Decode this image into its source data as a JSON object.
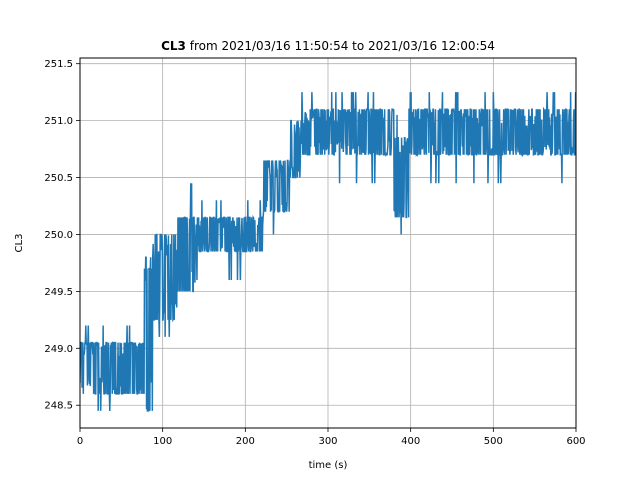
{
  "chart_data": {
    "type": "line",
    "title_bold": "CL3",
    "title_rest": " from 2021/03/16 11:50:54 to 2021/03/16 12:00:54",
    "xlabel": "time (s)",
    "ylabel": "CL3",
    "xlim": [
      0,
      600
    ],
    "ylim": [
      248.3,
      251.55
    ],
    "xticks": [
      0,
      100,
      200,
      300,
      400,
      500,
      600
    ],
    "yticks": [
      248.5,
      249.0,
      249.5,
      250.0,
      250.5,
      251.0,
      251.5
    ],
    "grid": true,
    "color": "#1f77b4",
    "series": [
      {
        "segments": [
          {
            "x0": 0,
            "x1": 78,
            "base": 248.85,
            "low": 248.6,
            "high": 249.05,
            "spike_high": 249.2,
            "spike_low": 248.45
          },
          {
            "x0": 78,
            "x1": 88,
            "base": 249.05,
            "low": 248.45,
            "high": 249.7,
            "spike_high": 249.8,
            "spike_low": 248.45
          },
          {
            "x0": 88,
            "x1": 118,
            "base": 249.6,
            "low": 249.25,
            "high": 250.0,
            "spike_high": 250.0,
            "spike_low": 249.1
          },
          {
            "x0": 118,
            "x1": 140,
            "base": 249.8,
            "low": 249.5,
            "high": 250.15,
            "spike_high": 250.45,
            "spike_low": 249.3
          },
          {
            "x0": 140,
            "x1": 222,
            "base": 250.0,
            "low": 249.85,
            "high": 250.15,
            "spike_high": 250.3,
            "spike_low": 249.6
          },
          {
            "x0": 222,
            "x1": 255,
            "base": 250.4,
            "low": 250.2,
            "high": 250.65,
            "spike_high": 250.65,
            "spike_low": 250.0
          },
          {
            "x0": 255,
            "x1": 268,
            "base": 250.75,
            "low": 250.5,
            "high": 251.0,
            "spike_high": 251.1,
            "spike_low": 250.4
          },
          {
            "x0": 268,
            "x1": 380,
            "base": 250.9,
            "low": 250.7,
            "high": 251.1,
            "spike_high": 251.25,
            "spike_low": 250.45
          },
          {
            "x0": 380,
            "x1": 398,
            "base": 250.55,
            "low": 250.15,
            "high": 250.85,
            "spike_high": 251.05,
            "spike_low": 250.0
          },
          {
            "x0": 398,
            "x1": 600,
            "base": 250.85,
            "low": 250.7,
            "high": 251.1,
            "spike_high": 251.25,
            "spike_low": 250.45
          }
        ]
      }
    ]
  }
}
